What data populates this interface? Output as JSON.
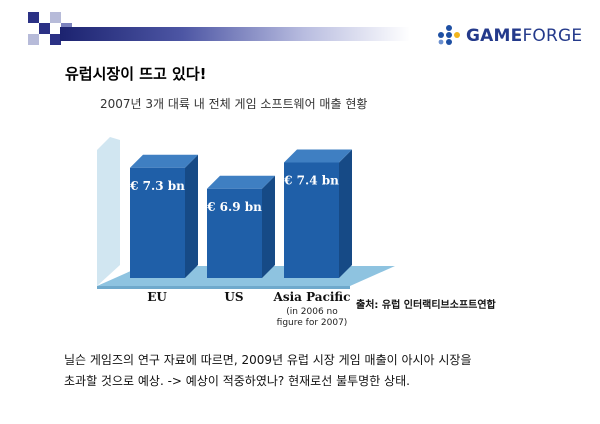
{
  "header": {
    "logo_name": "gameforge-logo",
    "logo_word_1": "GAME",
    "logo_word_2": "FORGE",
    "colors": {
      "bar_dark": "#1c2370",
      "logo_blue": "#243a8b",
      "logo_dots": [
        "#1e4fa3",
        "#f2b51c"
      ]
    }
  },
  "slide": {
    "title": "유럽시장이 뜨고 있다!",
    "chart_title": "2007년 3개 대륙 내 전체 게임 소프트웨어 매출 현황",
    "source": "출처:  유럽 인터랙티브소프트연합",
    "body_line_1": "닐슨 게임즈의 연구 자료에 따르면, 2009년 유럽 시장 게임 매출이 아시아 시장을",
    "body_line_2": "초과할 것으로 예상. -> 예상이 적중하였나? 현재로선 불투명한 상태."
  },
  "chart_data": {
    "type": "bar",
    "title": "2007년 3개 대륙 내 전체 게임 소프트웨어 매출 현황",
    "categories": [
      "EU",
      "US",
      "Asia Pacific"
    ],
    "category_notes": [
      "",
      "",
      "(in 2006 no figure for 2007)"
    ],
    "values": [
      7.3,
      6.9,
      7.4
    ],
    "value_labels": [
      "€ 7.3 bn",
      "€ 6.9 bn",
      "€ 7.4 bn"
    ],
    "unit": "€ bn",
    "ylim": [
      5.2,
      7.6
    ],
    "grid": false,
    "legend": "none",
    "colors": {
      "bar_front": "#1f5fa8",
      "bar_side": "#164a86",
      "bar_top": "#3f7fc2",
      "floor": "#8ec3e0"
    }
  }
}
